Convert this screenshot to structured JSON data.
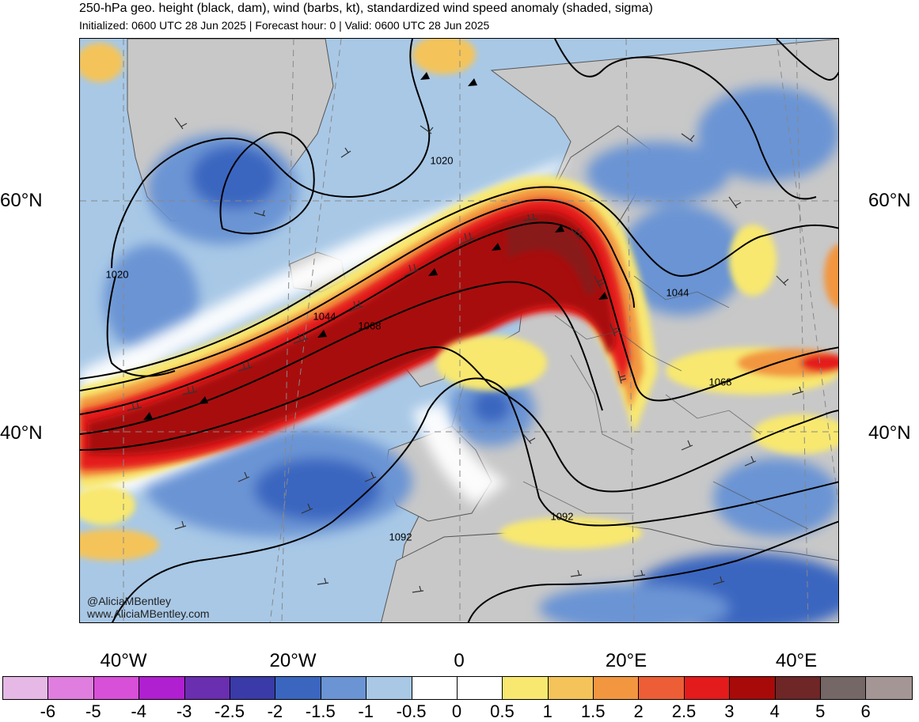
{
  "header": {
    "title": "250-hPa geo. height (black, dam), wind (barbs, kt), standardized wind speed anomaly (shaded, sigma)",
    "subtitle": "Initialized: 0600 UTC 28 Jun 2025 | Forecast hour: 0 | Valid: 0600 UTC 28 Jun 2025"
  },
  "axes": {
    "lat_left": [
      "60°N",
      "40°N"
    ],
    "lat_right": [
      "60°N",
      "40°N"
    ],
    "lon": [
      "40°W",
      "20°W",
      "0",
      "20°E",
      "40°E"
    ]
  },
  "contour_labels": [
    "1020",
    "1020",
    "1044",
    "1044",
    "1068",
    "1068",
    "1092",
    "1092"
  ],
  "credits": {
    "handle": "@AliciaMBentley",
    "site": "www.AliciaMBentley.com"
  },
  "colorbar": {
    "colors": [
      "#e6b8e6",
      "#e07ee0",
      "#d84fd8",
      "#b01fd0",
      "#6a2eb0",
      "#3a3aa8",
      "#3a66c0",
      "#6a94d4",
      "#a8c8e6",
      "#ffffff",
      "#ffffff",
      "#f8e870",
      "#f4c45a",
      "#f29640",
      "#ee5e36",
      "#e41b1b",
      "#a80a0a",
      "#6e2626",
      "#756766",
      "#a59696"
    ],
    "ticks": [
      "-6",
      "-5",
      "-4",
      "-3",
      "-2.5",
      "-2",
      "-1.5",
      "-1",
      "-0.5",
      "0",
      "0.5",
      "1",
      "1.5",
      "2",
      "2.5",
      "3",
      "4",
      "5",
      "6"
    ]
  },
  "map_colors": {
    "land": "#c8c8c8",
    "jet_core": "#a80a0a",
    "jet_mid": "#e41b1b",
    "jet_edge": "#f29640",
    "weak_blue": "#a8c8e6",
    "mid_blue": "#6a94d4",
    "deep_blue": "#3a66c0"
  }
}
